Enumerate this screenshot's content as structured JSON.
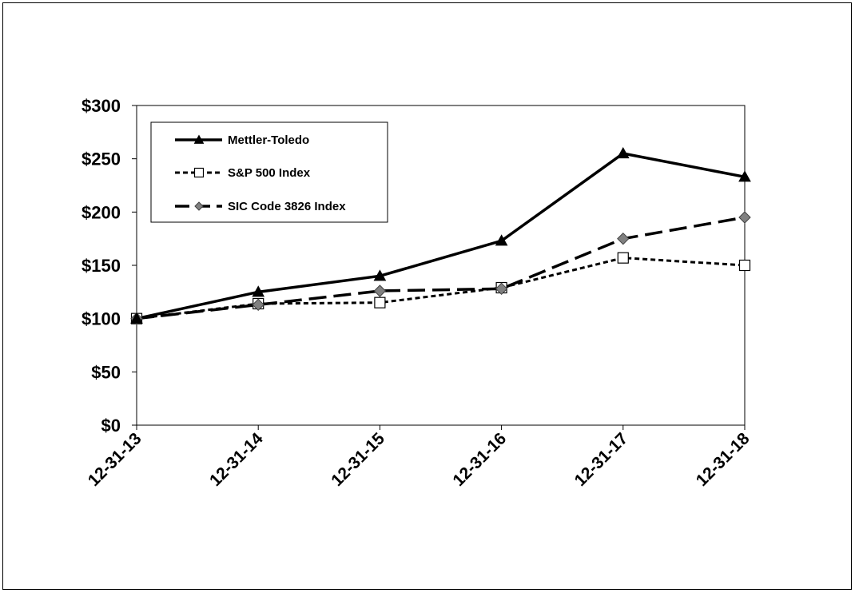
{
  "chart_data": {
    "type": "line",
    "title": "",
    "xlabel": "",
    "ylabel": "",
    "categories": [
      "12-31-13",
      "12-31-14",
      "12-31-15",
      "12-31-16",
      "12-31-17",
      "12-31-18"
    ],
    "ylim": [
      0,
      300
    ],
    "yticks": [
      0,
      50,
      100,
      150,
      200,
      250,
      300
    ],
    "ytick_labels": [
      "$0",
      "$50",
      "$100",
      "$150",
      "$200",
      "$250",
      "$300"
    ],
    "grid": false,
    "legend_position": "top-left",
    "series": [
      {
        "name": "Mettler-Toledo",
        "values": [
          100,
          125,
          140,
          173,
          255,
          233
        ],
        "color": "#000000",
        "line_style": "solid",
        "marker": "filled-triangle"
      },
      {
        "name": "S&P 500 Index",
        "values": [
          100,
          114,
          115,
          129,
          157,
          150
        ],
        "color": "#000000",
        "line_style": "dotted",
        "marker": "open-square"
      },
      {
        "name": "SIC Code 3826 Index",
        "values": [
          100,
          113,
          126,
          128,
          175,
          195
        ],
        "color": "#000000",
        "line_style": "long-dash",
        "marker": "gray-diamond",
        "marker_color": "#808080"
      }
    ]
  }
}
